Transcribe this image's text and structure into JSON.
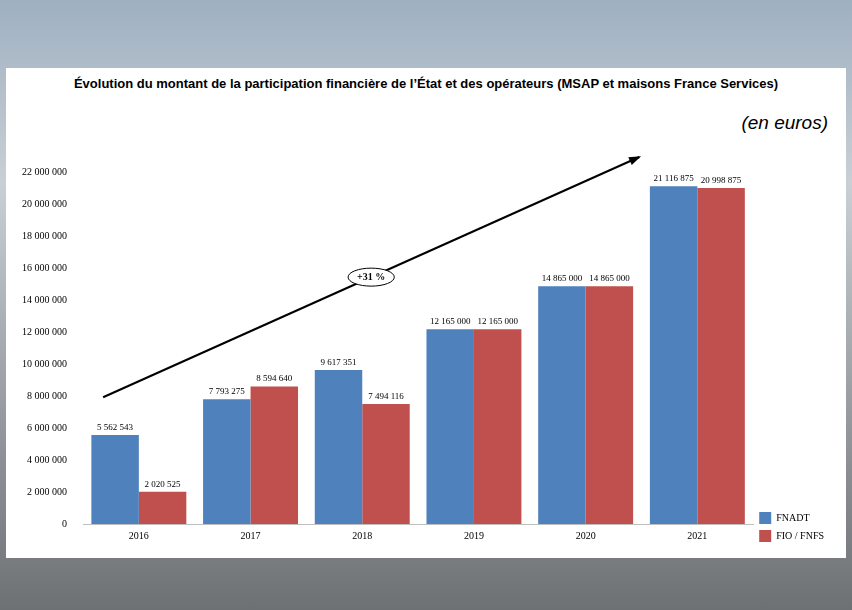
{
  "chart_data": {
    "type": "bar",
    "title": "Évolution du montant de la participation financière de l’État et des opérateurs (MSAP et maisons France Services)",
    "subtitle": "(en euros)",
    "categories": [
      "2016",
      "2017",
      "2018",
      "2019",
      "2020",
      "2021"
    ],
    "series": [
      {
        "name": "FNADT",
        "color": "#4f81bd",
        "values": [
          5562543,
          7793275,
          9617351,
          12165000,
          14865000,
          21116875
        ],
        "value_labels": [
          "5 562 543",
          "7 793 275",
          "9 617 351",
          "12 165 000",
          "14 865 000",
          "21 116 875"
        ]
      },
      {
        "name": "FIO / FNFS",
        "color": "#c0504d",
        "values": [
          2020525,
          8594640,
          7494116,
          12165000,
          14865000,
          20998875
        ],
        "value_labels": [
          "2 020 525",
          "8 594 640",
          "7 494 116",
          "12 165 000",
          "14 865 000",
          "20 998 875"
        ]
      }
    ],
    "ylim": [
      0,
      22000000
    ],
    "yticks": [
      0,
      {
        "value": 2000000,
        "label": "2 000 000"
      },
      {
        "value": 4000000,
        "label": "4 000 000"
      },
      {
        "value": 6000000,
        "label": "6 000 000"
      },
      {
        "value": 8000000,
        "label": "8 000 000"
      },
      {
        "value": 10000000,
        "label": "10 000 000"
      },
      {
        "value": 12000000,
        "label": "12 000 000"
      },
      {
        "value": 14000000,
        "label": "14 000 000"
      },
      {
        "value": 16000000,
        "label": "16 000 000"
      },
      {
        "value": 18000000,
        "label": "18 000 000"
      },
      {
        "value": 20000000,
        "label": "20 000 000"
      },
      {
        "value": 22000000,
        "label": "22 000 000"
      }
    ],
    "grid": false,
    "legend": "right",
    "data_labels": true,
    "annotations": [
      {
        "text": "+31 %"
      }
    ]
  }
}
